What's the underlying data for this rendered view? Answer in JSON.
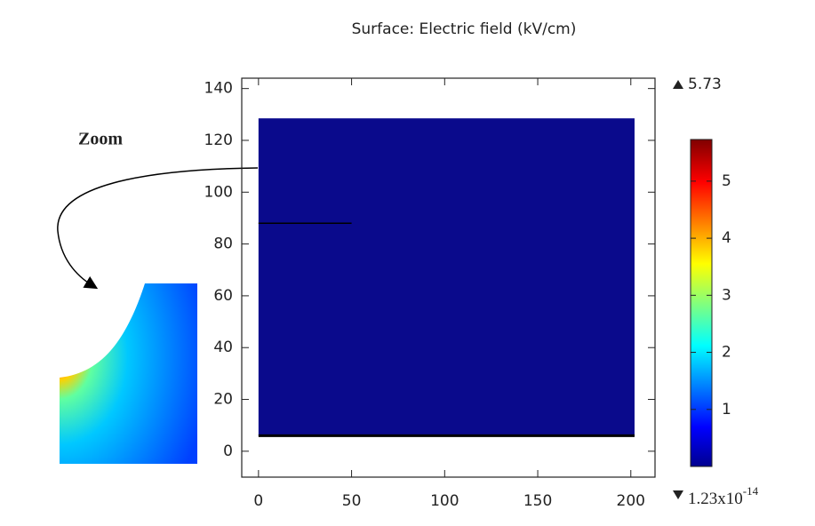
{
  "chart_data": {
    "type": "surface",
    "title": "Surface: Electric field (kV/cm)",
    "annotation": "Zoom",
    "xlim": [
      -9,
      213
    ],
    "xticks": [
      0,
      50,
      100,
      150,
      200
    ],
    "ylim": [
      -10,
      144
    ],
    "yticks": [
      0,
      20,
      40,
      60,
      80,
      100,
      120,
      140
    ],
    "domain": {
      "x": [
        0,
        202
      ],
      "y": [
        6,
        128.5
      ],
      "color": "#0a0a8c"
    },
    "line": {
      "x": [
        0,
        50
      ],
      "y": [
        88,
        88
      ]
    },
    "colorbar": {
      "lim": [
        1.23e-14,
        5.73
      ],
      "ticks": [
        1,
        2,
        3,
        4,
        5
      ],
      "max_label": 5.73,
      "min_label": {
        "value": 1.23e-14,
        "base": "1.23x10",
        "exp": "-14"
      }
    }
  }
}
